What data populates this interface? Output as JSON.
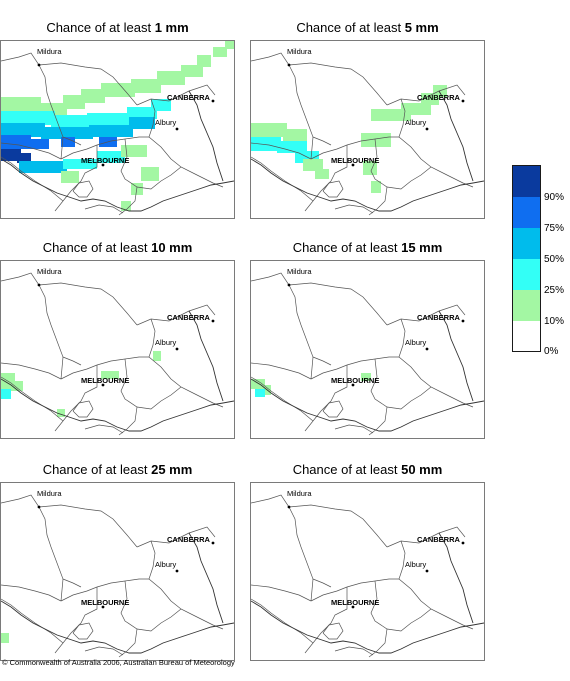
{
  "panels": [
    {
      "prefix": "Chance of at least ",
      "amount": "1 mm"
    },
    {
      "prefix": "Chance of at least ",
      "amount": "5 mm"
    },
    {
      "prefix": "Chance of at least ",
      "amount": "10 mm"
    },
    {
      "prefix": "Chance of at least ",
      "amount": "15 mm"
    },
    {
      "prefix": "Chance of at least ",
      "amount": "25 mm"
    },
    {
      "prefix": "Chance of at least ",
      "amount": "50 mm"
    }
  ],
  "map_labels": {
    "mildura": "Mildura",
    "canberra": "CANBERRA",
    "albury": "Albury",
    "melbourne": "MELBOURNE"
  },
  "legend": {
    "classes": [
      {
        "range": "90-100%",
        "color": "#0a3a9e"
      },
      {
        "range": "75-90%",
        "color": "#0f6ef0"
      },
      {
        "range": "50-75%",
        "color": "#00bcec"
      },
      {
        "range": "25-50%",
        "color": "#33fff6"
      },
      {
        "range": "10-25%",
        "color": "#a3f7a3"
      },
      {
        "range": "0-10%",
        "color": "#ffffff"
      }
    ],
    "ticks": [
      "90%",
      "75%",
      "50%",
      "25%",
      "10%",
      "0%"
    ]
  },
  "footer": "© Commonwealth of Australia 2006, Australian Bureau of Meteorology"
}
